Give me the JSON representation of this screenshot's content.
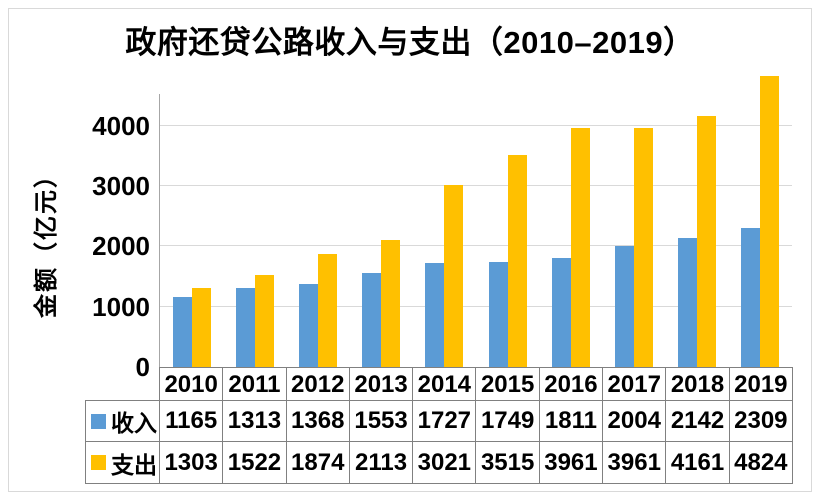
{
  "title": "政府还贷公路收入与支出（2010–2019）",
  "y_axis": {
    "label": "金额（亿元）"
  },
  "chart_data": {
    "type": "bar",
    "title": "政府还贷公路收入与支出（2010–2019）",
    "categories": [
      "2010",
      "2011",
      "2012",
      "2013",
      "2014",
      "2015",
      "2016",
      "2017",
      "2018",
      "2019"
    ],
    "series": [
      {
        "id": "income",
        "name": "收入",
        "color": "#5B9BD5",
        "values": [
          1165,
          1313,
          1368,
          1553,
          1727,
          1749,
          1811,
          2004,
          2142,
          2309
        ]
      },
      {
        "id": "expense",
        "name": "支出",
        "color": "#FFC000",
        "values": [
          1303,
          1522,
          1874,
          2113,
          3021,
          3515,
          3961,
          3961,
          4161,
          4824
        ]
      }
    ],
    "xlabel": "",
    "ylabel": "金额（亿元）",
    "ylim": [
      0,
      4824
    ],
    "yticks": [
      0,
      1000,
      2000,
      3000,
      4000
    ],
    "grid": true,
    "legend_position": "bottom-table"
  },
  "colors": {
    "income": "#5B9BD5",
    "expense": "#FFC000",
    "gridline": "#D9D9D9",
    "axis_line": "#A6A6A6",
    "table_border": "#808080",
    "frame_border": "#D9D9D9",
    "text": "#000000"
  }
}
